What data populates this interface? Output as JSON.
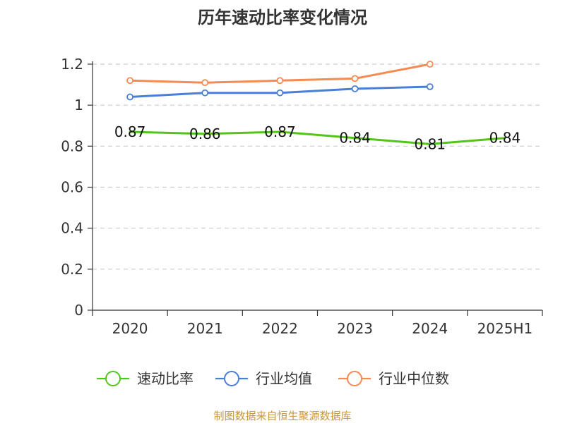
{
  "chart_data": {
    "type": "line",
    "title": "历年速动比率变化情况",
    "categories": [
      "2020",
      "2021",
      "2022",
      "2023",
      "2024",
      "2025H1"
    ],
    "ylim": [
      0,
      1.2
    ],
    "yticks": [
      "0",
      "0.2",
      "0.4",
      "0.6",
      "0.8",
      "1",
      "1.2"
    ],
    "grid": true,
    "legend_position": "bottom",
    "series": [
      {
        "name": "速动比率",
        "color": "#52c41a",
        "values": [
          0.87,
          0.86,
          0.87,
          0.84,
          0.81,
          0.84
        ],
        "labels": [
          "0.87",
          "0.86",
          "0.87",
          "0.84",
          "0.81",
          "0.84"
        ],
        "show_markers": false,
        "show_labels": true
      },
      {
        "name": "行业均值",
        "color": "#4a7fd6",
        "values": [
          1.04,
          1.06,
          1.06,
          1.08,
          1.09,
          null
        ],
        "show_markers": true,
        "show_labels": false
      },
      {
        "name": "行业中位数",
        "color": "#f58b52",
        "values": [
          1.12,
          1.11,
          1.12,
          1.13,
          1.2,
          null
        ],
        "show_markers": true,
        "show_labels": false
      }
    ],
    "source": "制图数据来自恒生聚源数据库"
  }
}
